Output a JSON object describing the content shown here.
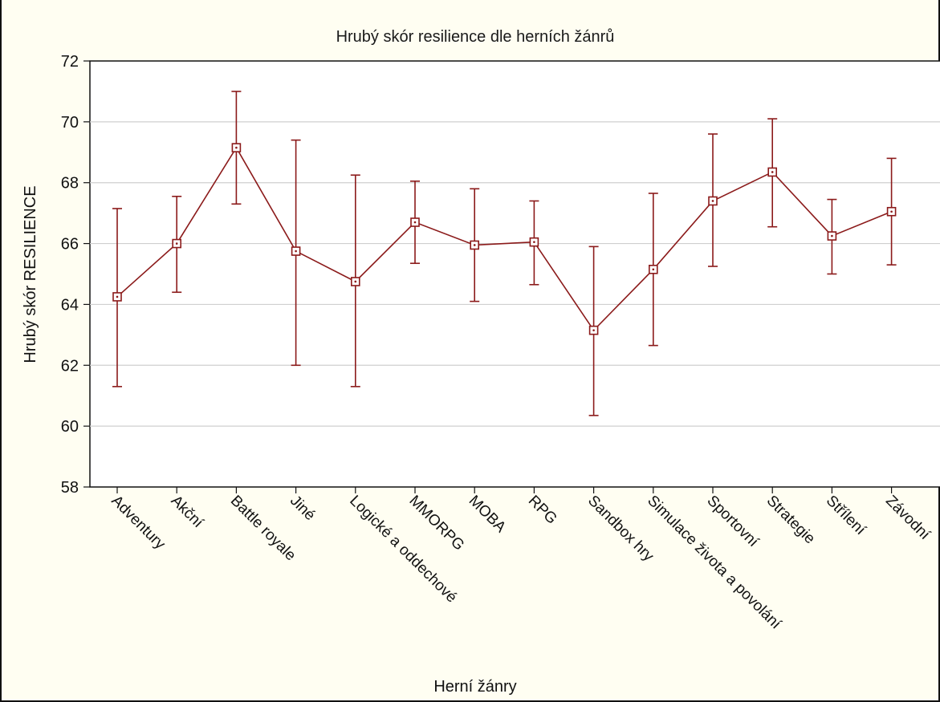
{
  "chart_data": {
    "type": "line",
    "title": "Hrubý skór resilience dle herních žánrů",
    "xlabel": "Herní žánry",
    "ylabel": "Hrubý skór RESILIENCE",
    "ylim": [
      58,
      72
    ],
    "yticks": [
      58,
      60,
      62,
      64,
      66,
      68,
      70,
      72
    ],
    "grid": true,
    "colors": {
      "series": "#8b1a1a",
      "grid": "#cfcfcf",
      "plot_background": "#ffffff",
      "frame_background": "#fffef2"
    },
    "categories": [
      "Adventury",
      "Akční",
      "Battle royale",
      "Jiné",
      "Logické a oddechové",
      "MMORPG",
      "MOBA",
      "RPG",
      "Sandbox hry",
      "Simulace života a povolání",
      "Sportovní",
      "Strategie",
      "Střílení",
      "Závodní"
    ],
    "series": [
      {
        "values": [
          64.25,
          66.0,
          69.15,
          65.75,
          64.75,
          66.7,
          65.95,
          66.05,
          63.15,
          65.15,
          67.4,
          68.35,
          66.25,
          67.05
        ],
        "lower": [
          61.3,
          64.4,
          67.3,
          62.0,
          61.3,
          65.35,
          64.1,
          64.65,
          60.35,
          62.65,
          65.25,
          66.55,
          65.0,
          65.3
        ],
        "upper": [
          67.15,
          67.55,
          71.0,
          69.4,
          68.25,
          68.05,
          67.8,
          67.4,
          65.9,
          67.65,
          69.6,
          70.1,
          67.45,
          68.8
        ]
      }
    ]
  }
}
